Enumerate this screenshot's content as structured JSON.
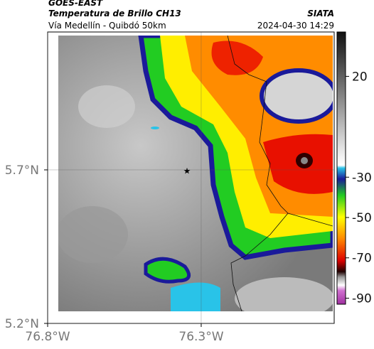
{
  "header": {
    "title": "GOES-EAST",
    "subtitle": "Temperatura de Brillo CH13",
    "region": "Vía Medellín - Quibdó 50km",
    "source": "SIATA",
    "timestamp": "2024-04-30 14:29"
  },
  "map": {
    "xlim": [
      -76.8,
      -75.867
    ],
    "ylim": [
      5.2,
      6.149
    ],
    "xticks": [
      {
        "value": -76.8,
        "label": "76.8°W"
      },
      {
        "value": -76.3,
        "label": "76.3°W"
      }
    ],
    "yticks": [
      {
        "value": 5.2,
        "label": "5.2°N"
      },
      {
        "value": 5.7,
        "label": "5.7°N"
      }
    ],
    "grid": true
  },
  "colorbar": {
    "lim": [
      -93,
      42
    ],
    "ticks": [
      20,
      -30,
      -50,
      -70,
      -90
    ]
  }
}
